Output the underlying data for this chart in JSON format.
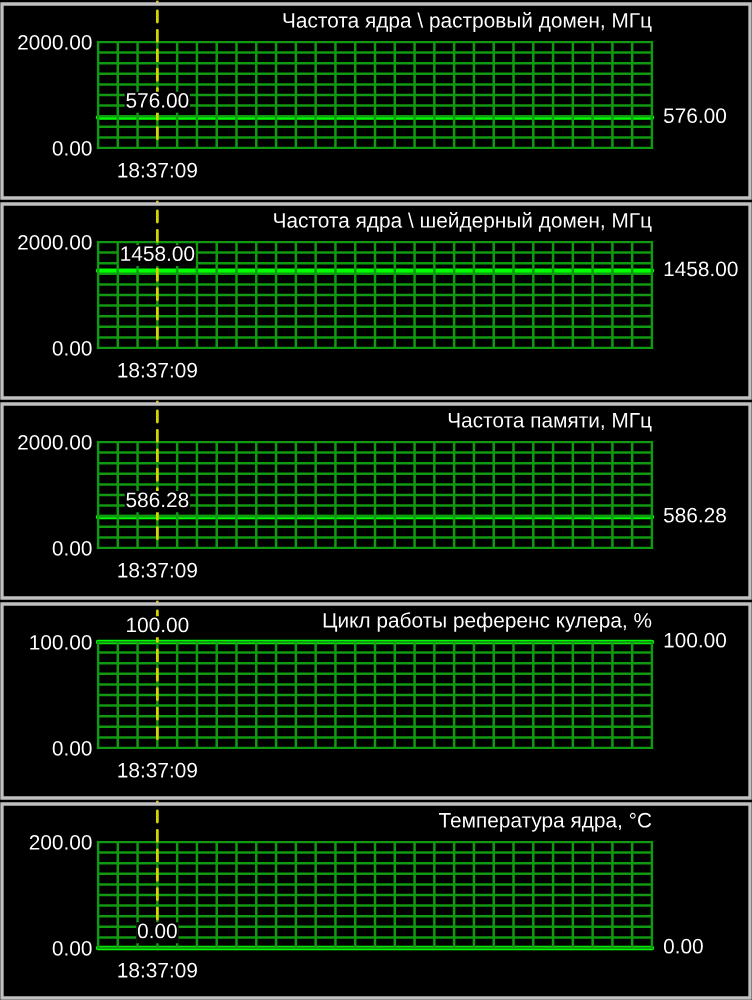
{
  "chart_data": [
    {
      "type": "line",
      "title": "Частота ядра \\ растровый домен, МГц",
      "categories": [
        null,
        null,
        null,
        null,
        null,
        null,
        null,
        null,
        null,
        null,
        null,
        null,
        null,
        null,
        null,
        null,
        null,
        null,
        null,
        null,
        null,
        null,
        null,
        null,
        null,
        null,
        null,
        null,
        null
      ],
      "ylim": [
        0,
        2000
      ],
      "yticks": [
        {
          "value": 0,
          "label": "0.00"
        },
        {
          "value": 200,
          "label": null
        },
        {
          "value": 400,
          "label": null
        },
        {
          "value": 600,
          "label": null
        },
        {
          "value": 800,
          "label": null
        },
        {
          "value": 1000,
          "label": null
        },
        {
          "value": 1200,
          "label": null
        },
        {
          "value": 1400,
          "label": null
        },
        {
          "value": 1600,
          "label": null
        },
        {
          "value": 1800,
          "label": null
        },
        {
          "value": 2000,
          "label": "2000.00"
        }
      ],
      "grid": true,
      "annotations": [
        "18:37:09"
      ],
      "series": [
        {
          "color": "#00ff00",
          "values": [
            576,
            576,
            576,
            576,
            576,
            576,
            576,
            576,
            576,
            576,
            576,
            576,
            576,
            576,
            576,
            576,
            576,
            576,
            576,
            576,
            576,
            576,
            576,
            576,
            576,
            576,
            576,
            576,
            576
          ],
          "value_labels": [
            null,
            null,
            null,
            "576.00",
            null,
            null,
            null,
            null,
            null,
            null,
            null,
            null,
            null,
            null,
            null,
            null,
            null,
            null,
            null,
            null,
            null,
            null,
            null,
            null,
            null,
            null,
            null,
            null,
            "576.00"
          ]
        }
      ]
    },
    {
      "type": "line",
      "title": "Частота ядра \\ шейдерный домен, МГц",
      "categories": [
        null,
        null,
        null,
        null,
        null,
        null,
        null,
        null,
        null,
        null,
        null,
        null,
        null,
        null,
        null,
        null,
        null,
        null,
        null,
        null,
        null,
        null,
        null,
        null,
        null,
        null,
        null,
        null,
        null
      ],
      "ylim": [
        0,
        2000
      ],
      "yticks": [
        {
          "value": 0,
          "label": "0.00"
        },
        {
          "value": 200,
          "label": null
        },
        {
          "value": 400,
          "label": null
        },
        {
          "value": 600,
          "label": null
        },
        {
          "value": 800,
          "label": null
        },
        {
          "value": 1000,
          "label": null
        },
        {
          "value": 1200,
          "label": null
        },
        {
          "value": 1400,
          "label": null
        },
        {
          "value": 1600,
          "label": null
        },
        {
          "value": 1800,
          "label": null
        },
        {
          "value": 2000,
          "label": "2000.00"
        }
      ],
      "grid": true,
      "annotations": [
        "18:37:09"
      ],
      "series": [
        {
          "color": "#00ff00",
          "values": [
            1458,
            1458,
            1458,
            1458,
            1458,
            1458,
            1458,
            1458,
            1458,
            1458,
            1458,
            1458,
            1458,
            1458,
            1458,
            1458,
            1458,
            1458,
            1458,
            1458,
            1458,
            1458,
            1458,
            1458,
            1458,
            1458,
            1458,
            1458,
            1458
          ],
          "value_labels": [
            null,
            null,
            null,
            "1458.00",
            null,
            null,
            null,
            null,
            null,
            null,
            null,
            null,
            null,
            null,
            null,
            null,
            null,
            null,
            null,
            null,
            null,
            null,
            null,
            null,
            null,
            null,
            null,
            null,
            "1458.00"
          ]
        }
      ]
    },
    {
      "type": "line",
      "title": "Частота памяти, МГц",
      "categories": [
        null,
        null,
        null,
        null,
        null,
        null,
        null,
        null,
        null,
        null,
        null,
        null,
        null,
        null,
        null,
        null,
        null,
        null,
        null,
        null,
        null,
        null,
        null,
        null,
        null,
        null,
        null,
        null,
        null
      ],
      "ylim": [
        0,
        2000
      ],
      "yticks": [
        {
          "value": 0,
          "label": "0.00"
        },
        {
          "value": 200,
          "label": null
        },
        {
          "value": 400,
          "label": null
        },
        {
          "value": 600,
          "label": null
        },
        {
          "value": 800,
          "label": null
        },
        {
          "value": 1000,
          "label": null
        },
        {
          "value": 1200,
          "label": null
        },
        {
          "value": 1400,
          "label": null
        },
        {
          "value": 1600,
          "label": null
        },
        {
          "value": 1800,
          "label": null
        },
        {
          "value": 2000,
          "label": "2000.00"
        }
      ],
      "grid": true,
      "annotations": [
        "18:37:09"
      ],
      "series": [
        {
          "color": "#00ff00",
          "values": [
            586.28,
            586.28,
            586.28,
            586.28,
            586.28,
            586.28,
            586.28,
            586.28,
            586.28,
            586.28,
            586.28,
            586.28,
            586.28,
            586.28,
            586.28,
            586.28,
            586.28,
            586.28,
            586.28,
            586.28,
            586.28,
            586.28,
            586.28,
            586.28,
            586.28,
            586.28,
            586.28,
            586.28,
            586.28
          ],
          "value_labels": [
            null,
            null,
            null,
            "586.28",
            null,
            null,
            null,
            null,
            null,
            null,
            null,
            null,
            null,
            null,
            null,
            null,
            null,
            null,
            null,
            null,
            null,
            null,
            null,
            null,
            null,
            null,
            null,
            null,
            "586.28"
          ]
        }
      ]
    },
    {
      "type": "line",
      "title": "Цикл работы референс кулера, %",
      "categories": [
        null,
        null,
        null,
        null,
        null,
        null,
        null,
        null,
        null,
        null,
        null,
        null,
        null,
        null,
        null,
        null,
        null,
        null,
        null,
        null,
        null,
        null,
        null,
        null,
        null,
        null,
        null,
        null,
        null
      ],
      "ylim": [
        0,
        100
      ],
      "yticks": [
        {
          "value": 0,
          "label": "0.00"
        },
        {
          "value": 10,
          "label": null
        },
        {
          "value": 20,
          "label": null
        },
        {
          "value": 30,
          "label": null
        },
        {
          "value": 40,
          "label": null
        },
        {
          "value": 50,
          "label": null
        },
        {
          "value": 60,
          "label": null
        },
        {
          "value": 70,
          "label": null
        },
        {
          "value": 80,
          "label": null
        },
        {
          "value": 90,
          "label": null
        },
        {
          "value": 100,
          "label": "100.00"
        }
      ],
      "grid": true,
      "annotations": [
        "18:37:09"
      ],
      "series": [
        {
          "color": "#00ff00",
          "values": [
            100,
            100,
            100,
            100,
            100,
            100,
            100,
            100,
            100,
            100,
            100,
            100,
            100,
            100,
            100,
            100,
            100,
            100,
            100,
            100,
            100,
            100,
            100,
            100,
            100,
            100,
            100,
            100,
            100
          ],
          "value_labels": [
            null,
            null,
            null,
            "100.00",
            null,
            null,
            null,
            null,
            null,
            null,
            null,
            null,
            null,
            null,
            null,
            null,
            null,
            null,
            null,
            null,
            null,
            null,
            null,
            null,
            null,
            null,
            null,
            null,
            "100.00"
          ]
        }
      ]
    },
    {
      "type": "line",
      "title": "Температура ядра, °C",
      "categories": [
        null,
        null,
        null,
        null,
        null,
        null,
        null,
        null,
        null,
        null,
        null,
        null,
        null,
        null,
        null,
        null,
        null,
        null,
        null,
        null,
        null,
        null,
        null,
        null,
        null,
        null,
        null,
        null,
        null
      ],
      "ylim": [
        0,
        200
      ],
      "yticks": [
        {
          "value": 0,
          "label": "0.00"
        },
        {
          "value": 20,
          "label": null
        },
        {
          "value": 40,
          "label": null
        },
        {
          "value": 60,
          "label": null
        },
        {
          "value": 80,
          "label": null
        },
        {
          "value": 100,
          "label": null
        },
        {
          "value": 120,
          "label": null
        },
        {
          "value": 140,
          "label": null
        },
        {
          "value": 160,
          "label": null
        },
        {
          "value": 180,
          "label": null
        },
        {
          "value": 200,
          "label": "200.00"
        }
      ],
      "grid": true,
      "annotations": [
        "18:37:09"
      ],
      "series": [
        {
          "color": "#00ff00",
          "values": [
            0,
            0,
            0,
            0,
            0,
            0,
            0,
            0,
            0,
            0,
            0,
            0,
            0,
            0,
            0,
            0,
            0,
            0,
            0,
            0,
            0,
            0,
            0,
            0,
            0,
            0,
            0,
            0,
            0
          ],
          "value_labels": [
            null,
            null,
            null,
            "0.00",
            null,
            null,
            null,
            null,
            null,
            null,
            null,
            null,
            null,
            null,
            null,
            null,
            null,
            null,
            null,
            null,
            null,
            null,
            null,
            null,
            null,
            null,
            null,
            null,
            "0.00"
          ]
        }
      ]
    }
  ]
}
